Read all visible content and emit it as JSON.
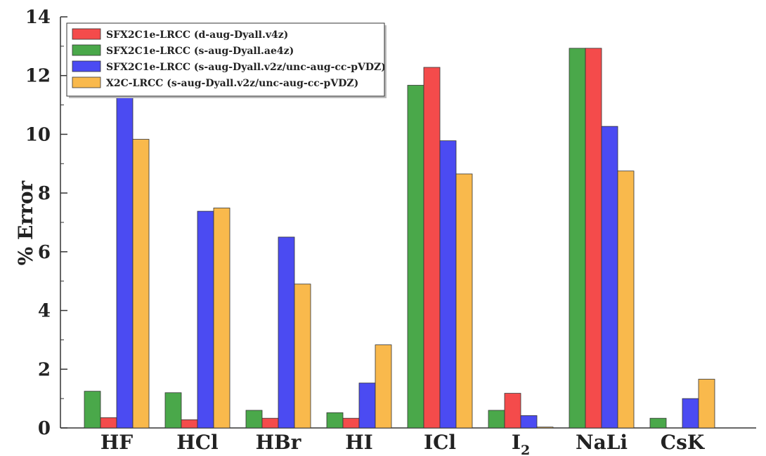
{
  "chart_data": {
    "type": "bar",
    "ylabel": "% Error",
    "xlabel": "",
    "ylim": [
      0,
      14
    ],
    "yticks": [
      0,
      2,
      4,
      6,
      8,
      10,
      12,
      14
    ],
    "categories": [
      {
        "base": "HF",
        "sub": ""
      },
      {
        "base": "HCl",
        "sub": ""
      },
      {
        "base": "HBr",
        "sub": ""
      },
      {
        "base": "HI",
        "sub": ""
      },
      {
        "base": "ICl",
        "sub": ""
      },
      {
        "base": "I",
        "sub": "2"
      },
      {
        "base": "NaLi",
        "sub": ""
      },
      {
        "base": "CsK",
        "sub": ""
      }
    ],
    "legend_position": "top-left",
    "bar_order": [
      1,
      0,
      2,
      3
    ],
    "series": [
      {
        "name": "SFX2C1e-LRCC (d-aug-Dyall.v4z)",
        "color": "#f44b4b",
        "values": [
          0.35,
          0.28,
          0.33,
          0.33,
          12.28,
          1.18,
          12.93,
          0
        ]
      },
      {
        "name": "SFX2C1e-LRCC (s-aug-Dyall.ae4z)",
        "color": "#4aa84a",
        "values": [
          1.25,
          1.2,
          0.6,
          0.52,
          11.67,
          0.6,
          12.93,
          0.33
        ]
      },
      {
        "name": "SFX2C1e-LRCC (s-aug-Dyall.v2z/unc-aug-cc-pVDZ)",
        "color": "#4b4bf2",
        "values": [
          11.25,
          7.38,
          6.5,
          1.53,
          9.78,
          0.42,
          10.27,
          1.0
        ]
      },
      {
        "name": "X2C-LRCC (s-aug-Dyall.v2z/unc-aug-cc-pVDZ)",
        "color": "#f9b94c",
        "values": [
          9.83,
          7.49,
          4.9,
          2.83,
          8.65,
          0.03,
          8.75,
          1.66
        ]
      }
    ]
  }
}
